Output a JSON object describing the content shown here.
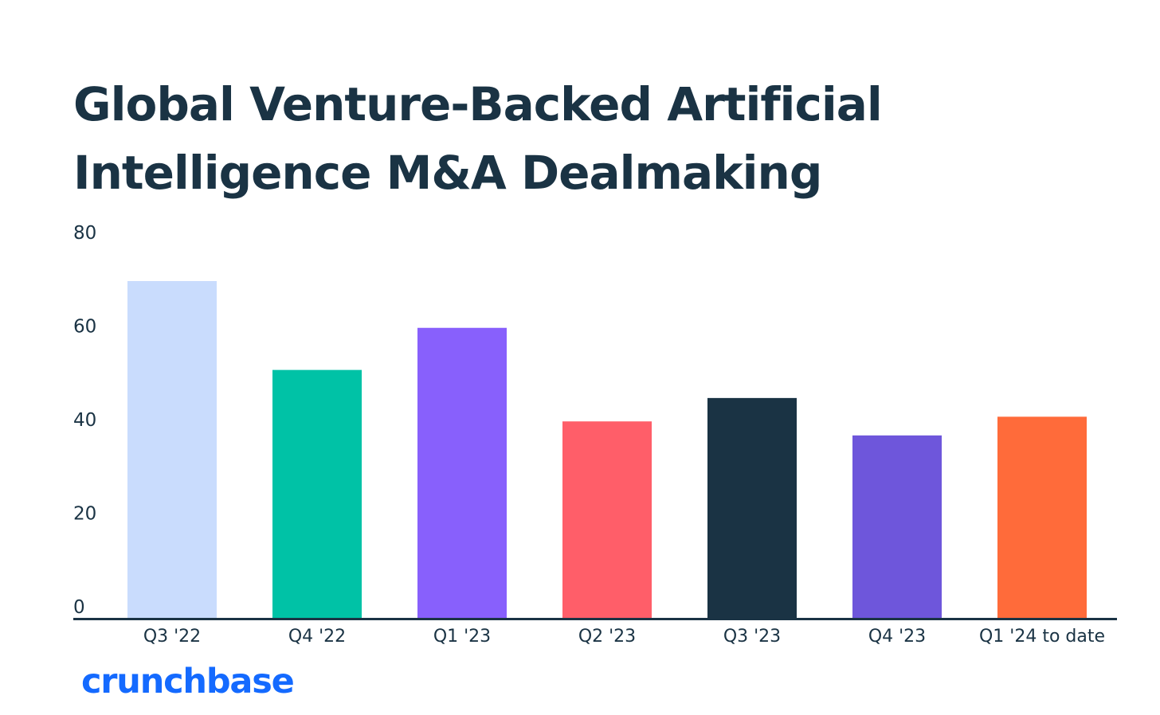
{
  "brand": {
    "name": "crunchbase",
    "color": "#146aff"
  },
  "chart_data": {
    "type": "bar",
    "title": "Global Venture-Backed Artificial Intelligence M&A Dealmaking",
    "xlabel": "",
    "ylabel": "",
    "ylim": [
      0,
      80
    ],
    "yticks": [
      0,
      20,
      40,
      60,
      80
    ],
    "grid": false,
    "legend": "none",
    "categories": [
      "Q3 '22",
      "Q4 '22",
      "Q1 '23",
      "Q2 '23",
      "Q3 '23",
      "Q4 '23",
      "Q1 '24 to date"
    ],
    "values": [
      72,
      53,
      62,
      42,
      47,
      39,
      43
    ],
    "colors": [
      "#c9dcfd",
      "#00c2a6",
      "#8860fc",
      "#ff5e69",
      "#1a3344",
      "#6e56db",
      "#ff6b3a"
    ],
    "axis_color": "#1a3344",
    "tick_label_color": "#1a3344"
  }
}
